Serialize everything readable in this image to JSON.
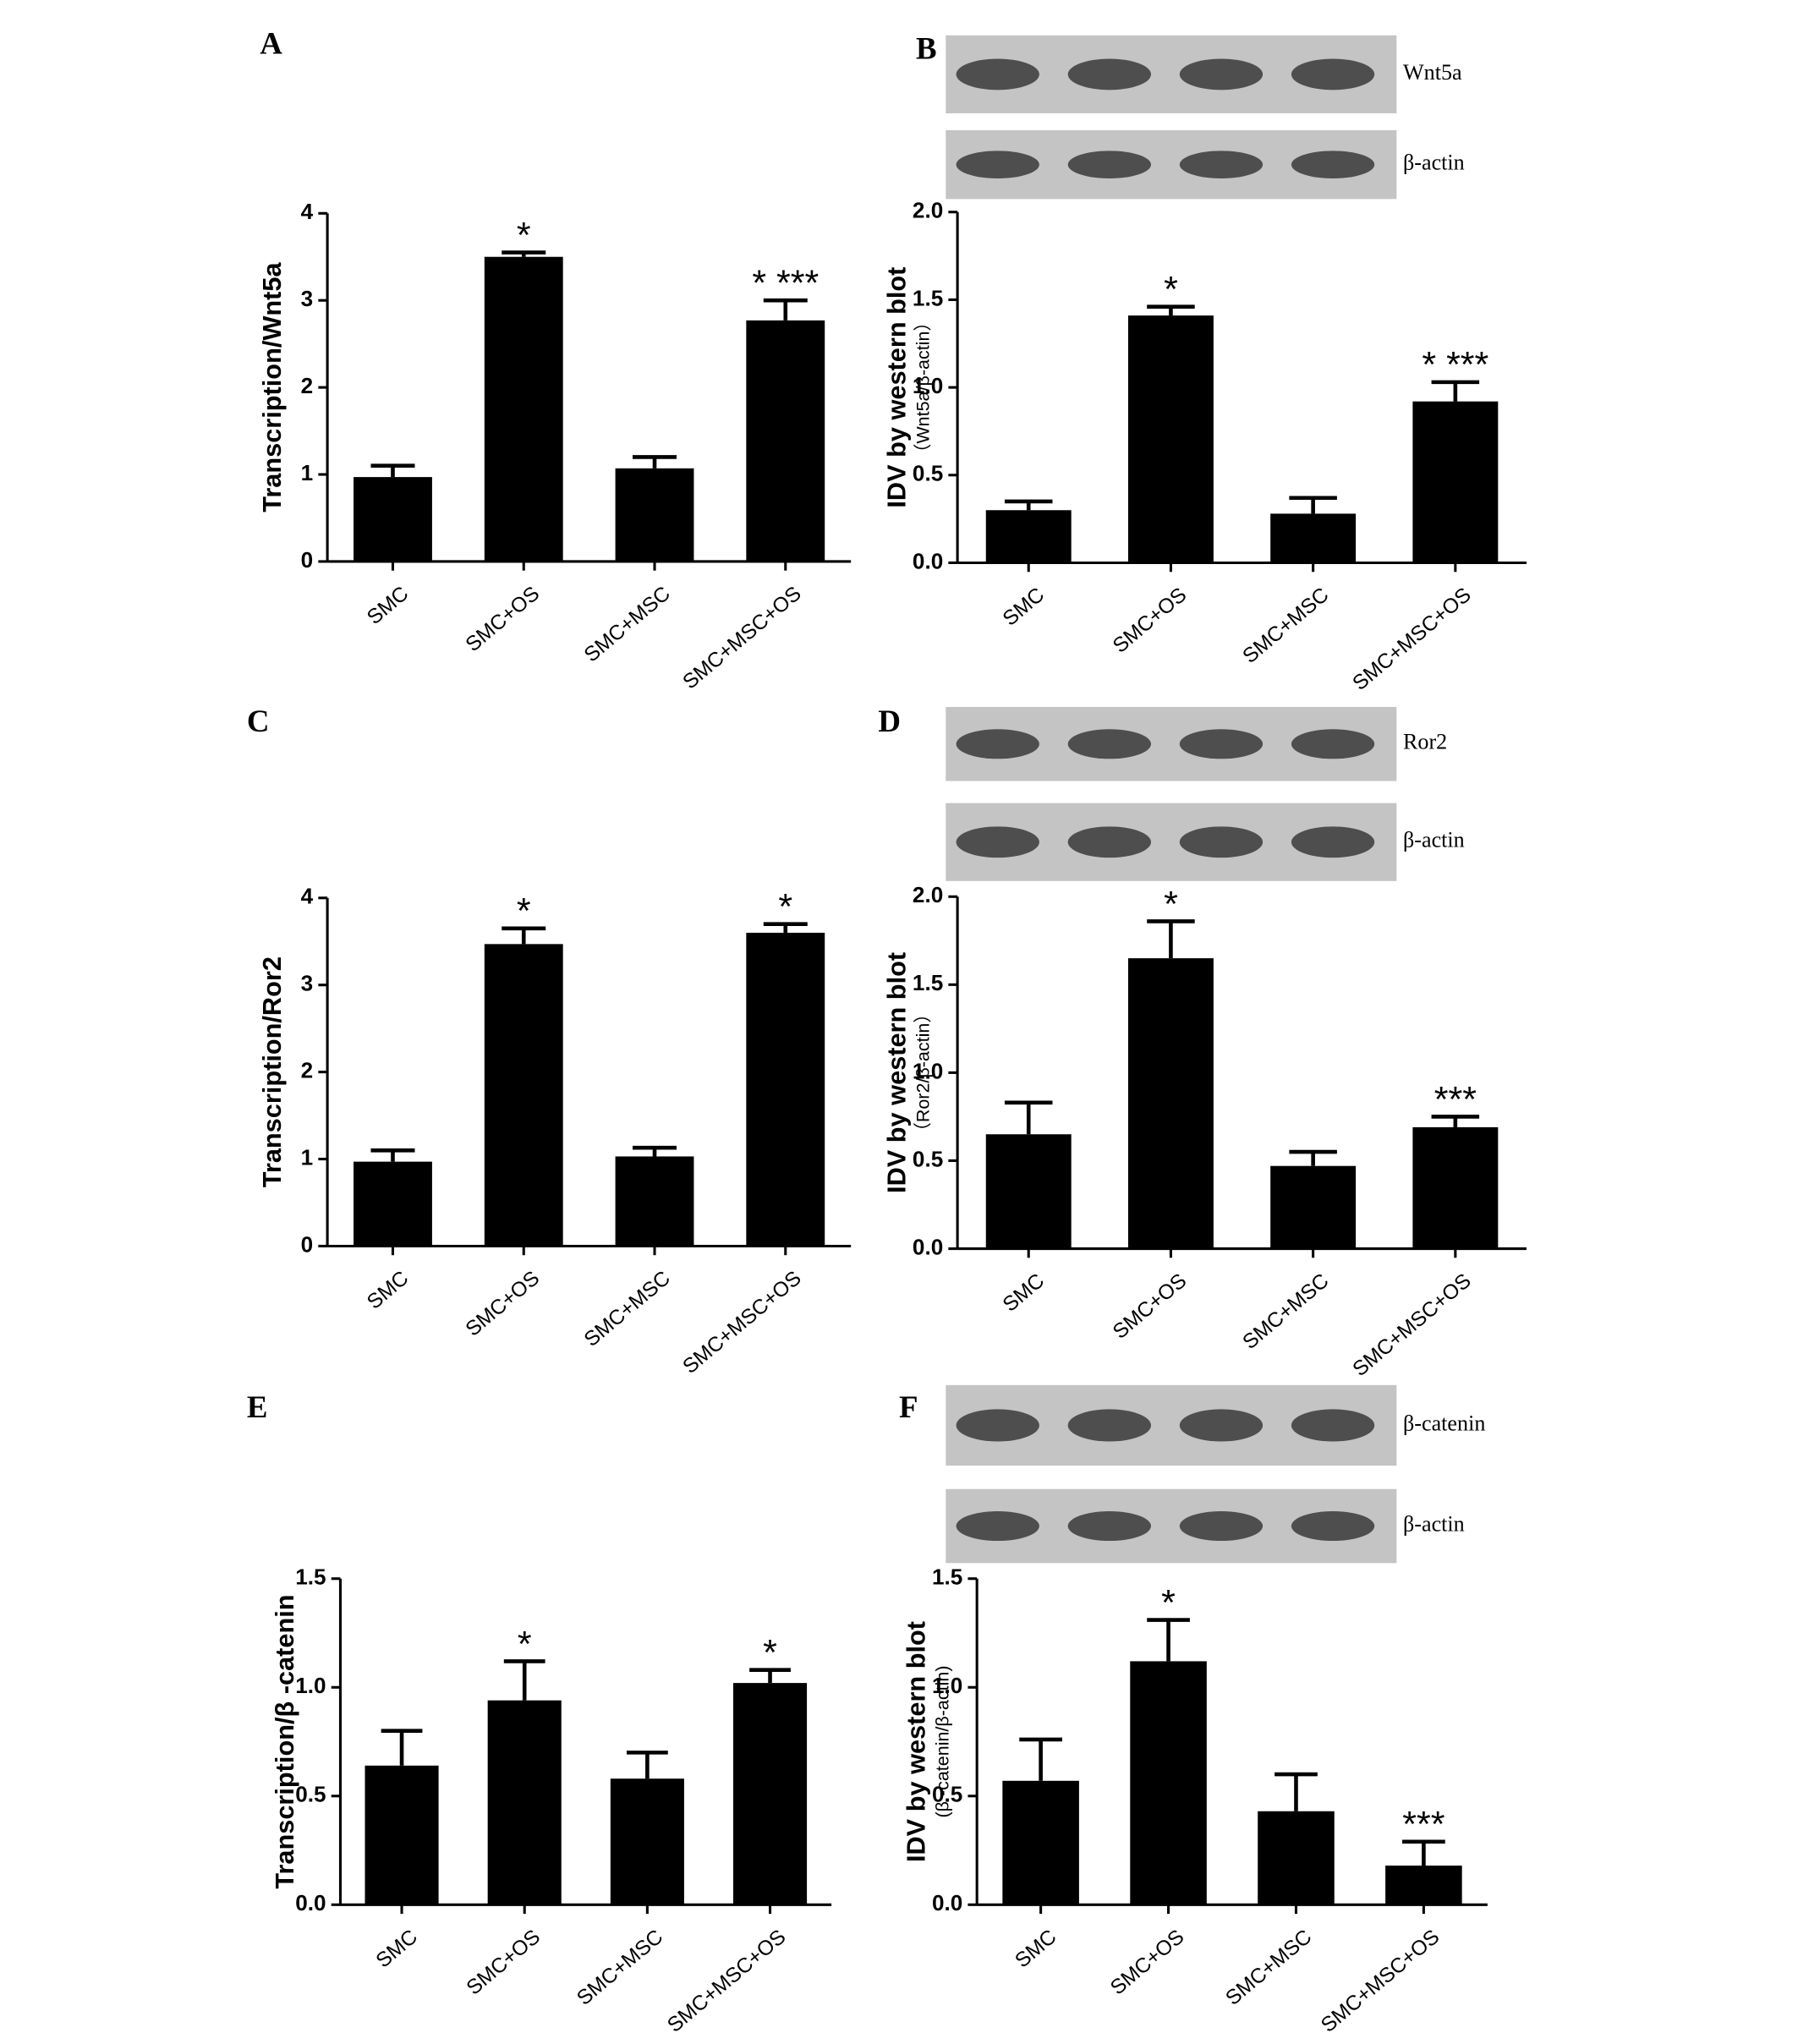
{
  "chart_data": [
    {
      "type": "bar",
      "panel": "A",
      "ylabel": "Transcription/Wnt5a",
      "categories": [
        "SMC",
        "SMC+OS",
        "SMC+MSC",
        "SMC+MSC+OS"
      ],
      "values": [
        0.97,
        3.5,
        1.07,
        2.77
      ],
      "errors": [
        0.13,
        0.05,
        0.13,
        0.23
      ],
      "annotations": [
        null,
        "*",
        null,
        "*  ***"
      ],
      "color": "#000000",
      "ylim": [
        0,
        4
      ],
      "yticks": [
        0,
        1,
        2,
        3,
        4
      ]
    },
    {
      "type": "bar",
      "panel": "B",
      "ylabel": "IDV by western blot",
      "ylabel2": "（Wnt5a/β-actin）",
      "blot_labels": [
        "Wnt5a",
        "β-actin"
      ],
      "categories": [
        "SMC",
        "SMC+OS",
        "SMC+MSC",
        "SMC+MSC+OS"
      ],
      "values": [
        0.3,
        1.41,
        0.28,
        0.92
      ],
      "errors": [
        0.05,
        0.05,
        0.09,
        0.11
      ],
      "annotations": [
        null,
        "*",
        null,
        "*  ***"
      ],
      "color": "#000000",
      "ylim": [
        0,
        2
      ],
      "yticks": [
        {
          "value": 0,
          "label": "0.0"
        },
        {
          "value": 0.5,
          "label": "0.5"
        },
        {
          "value": 1,
          "label": "1.0"
        },
        {
          "value": 1.5,
          "label": "1.5"
        },
        {
          "value": 2,
          "label": "2.0"
        }
      ]
    },
    {
      "type": "bar",
      "panel": "C",
      "ylabel": "Transcription/Ror2",
      "categories": [
        "SMC",
        "SMC+OS",
        "SMC+MSC",
        "SMC+MSC+OS"
      ],
      "values": [
        0.97,
        3.47,
        1.03,
        3.6
      ],
      "errors": [
        0.13,
        0.18,
        0.1,
        0.1
      ],
      "annotations": [
        null,
        "*",
        null,
        "*"
      ],
      "color": "#000000",
      "ylim": [
        0,
        4
      ],
      "yticks": [
        0,
        1,
        2,
        3,
        4
      ]
    },
    {
      "type": "bar",
      "panel": "D",
      "ylabel": "IDV by western blot",
      "ylabel2": "（Ror2/β-actin）",
      "blot_labels": [
        "Ror2",
        "β-actin"
      ],
      "categories": [
        "SMC",
        "SMC+OS",
        "SMC+MSC",
        "SMC+MSC+OS"
      ],
      "values": [
        0.65,
        1.65,
        0.47,
        0.69
      ],
      "errors": [
        0.18,
        0.21,
        0.08,
        0.06
      ],
      "annotations": [
        null,
        "*",
        null,
        "***"
      ],
      "color": "#000000",
      "ylim": [
        0,
        2
      ],
      "yticks": [
        {
          "value": 0,
          "label": "0.0"
        },
        {
          "value": 0.5,
          "label": "0.5"
        },
        {
          "value": 1,
          "label": "1.0"
        },
        {
          "value": 1.5,
          "label": "1.5"
        },
        {
          "value": 2,
          "label": "2.0"
        }
      ]
    },
    {
      "type": "bar",
      "panel": "E",
      "ylabel": "Transcription/β -catenin",
      "categories": [
        "SMC",
        "SMC+OS",
        "SMC+MSC",
        "SMC+MSC+OS"
      ],
      "values": [
        0.64,
        0.94,
        0.58,
        1.02
      ],
      "errors": [
        0.16,
        0.18,
        0.12,
        0.06
      ],
      "annotations": [
        null,
        "*",
        null,
        "*"
      ],
      "color": "#000000",
      "ylim": [
        0,
        1.5
      ],
      "yticks": [
        {
          "value": 0,
          "label": "0.0"
        },
        {
          "value": 0.5,
          "label": "0.5"
        },
        {
          "value": 1,
          "label": "1.0"
        },
        {
          "value": 1.5,
          "label": "1.5"
        }
      ]
    },
    {
      "type": "bar",
      "panel": "F",
      "ylabel": "IDV by western blot",
      "ylabel2": "(β -catenin/β-actin)",
      "blot_labels": [
        "β-catenin",
        "β-actin"
      ],
      "categories": [
        "SMC",
        "SMC+OS",
        "SMC+MSC",
        "SMC+MSC+OS"
      ],
      "values": [
        0.57,
        1.12,
        0.43,
        0.18
      ],
      "errors": [
        0.19,
        0.19,
        0.17,
        0.11
      ],
      "annotations": [
        null,
        "*",
        null,
        "***"
      ],
      "color": "#000000",
      "ylim": [
        0,
        1.5
      ],
      "yticks": [
        {
          "value": 0,
          "label": "0.0"
        },
        {
          "value": 0.5,
          "label": "0.5"
        },
        {
          "value": 1,
          "label": "1.0"
        },
        {
          "value": 1.5,
          "label": "1.5"
        }
      ]
    }
  ]
}
